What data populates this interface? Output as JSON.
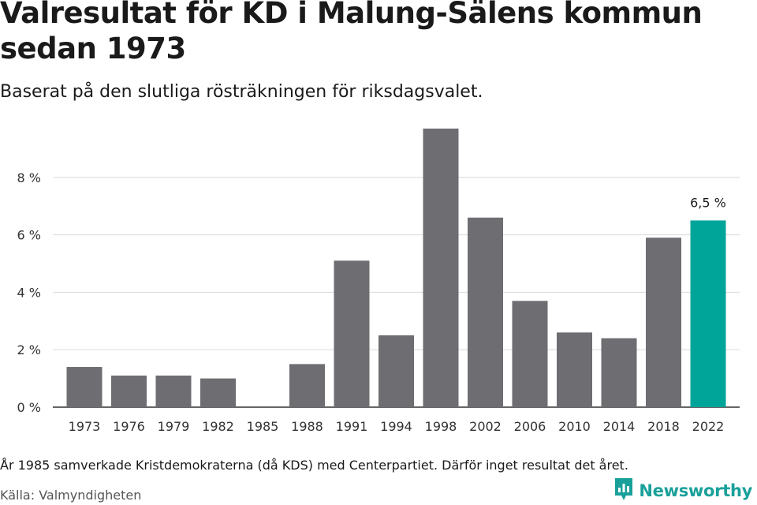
{
  "title": "Valresultat för KD i Malung-Sälens kommun sedan 1973",
  "subtitle": "Baserat på den slutliga rösträkningen för riksdagsvalet.",
  "note": "År 1985 samverkade Kristdemokraterna (då KDS) med Centerpartiet. Därför inget resultat det året.",
  "source": "Källa: Valmyndigheten",
  "brand": {
    "name": "Newsworthy",
    "icon": "bar-chart-logo-icon",
    "color": "#1aa09a"
  },
  "chart_data": {
    "type": "bar",
    "categories": [
      "1973",
      "1976",
      "1979",
      "1982",
      "1985",
      "1988",
      "1991",
      "1994",
      "1998",
      "2002",
      "2006",
      "2010",
      "2014",
      "2018",
      "2022"
    ],
    "values": [
      1.4,
      1.1,
      1.1,
      1.0,
      null,
      1.5,
      5.1,
      2.5,
      9.7,
      6.6,
      3.7,
      2.6,
      2.4,
      5.9,
      6.5
    ],
    "ylim": [
      0,
      10
    ],
    "yticks": [
      0,
      2,
      4,
      6,
      8
    ],
    "ytick_labels": [
      "0 %",
      "2 %",
      "4 %",
      "6 %",
      "8 %"
    ],
    "grid": true,
    "bar_color": "#6e6d72",
    "highlight_color": "#00a59a",
    "highlight_index": 14,
    "data_labels": [
      {
        "index": 14,
        "text": "6,5 %"
      }
    ]
  }
}
